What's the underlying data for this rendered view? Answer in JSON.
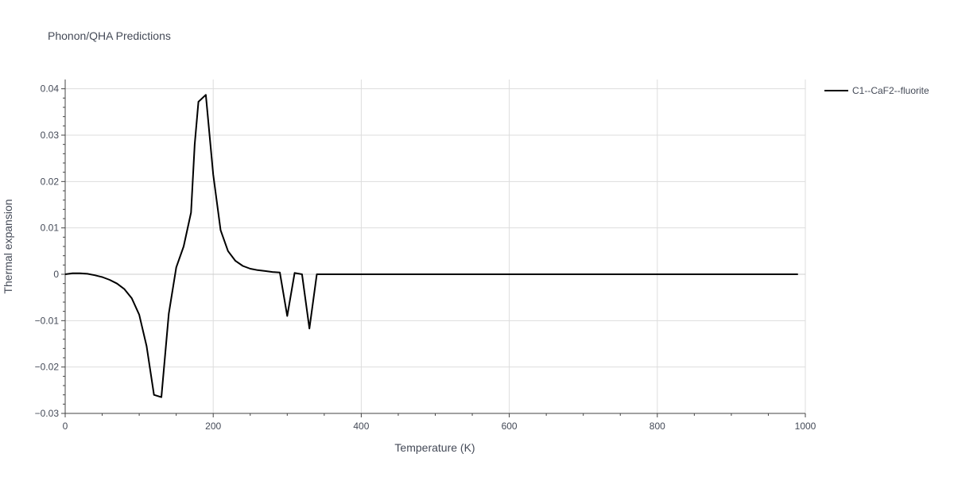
{
  "chart_data": {
    "type": "line",
    "title": "Phonon/QHA Predictions",
    "xlabel": "Temperature (K)",
    "ylabel": "Thermal expansion",
    "xlim": [
      0,
      1000
    ],
    "ylim": [
      -0.03,
      0.042
    ],
    "xticks": [
      0,
      200,
      400,
      600,
      800,
      1000
    ],
    "xtick_labels": [
      "0",
      "200",
      "400",
      "600",
      "800",
      "1000"
    ],
    "yticks": [
      -0.03,
      -0.02,
      -0.01,
      0,
      0.01,
      0.02,
      0.03,
      0.04
    ],
    "ytick_labels": [
      "−0.03",
      "−0.02",
      "−0.01",
      "0",
      "0.01",
      "0.02",
      "0.03",
      "0.04"
    ],
    "grid": true,
    "legend_position": "top-right-outside",
    "series": [
      {
        "name": "C1--CaF2--fluorite",
        "color": "#000000",
        "x": [
          0,
          10,
          20,
          30,
          40,
          50,
          60,
          70,
          80,
          90,
          100,
          110,
          120,
          130,
          140,
          150,
          160,
          170,
          175,
          180,
          190,
          200,
          210,
          220,
          230,
          240,
          250,
          260,
          270,
          280,
          290,
          300,
          310,
          320,
          330,
          340,
          350,
          400,
          500,
          600,
          700,
          800,
          900,
          990
        ],
        "y": [
          0,
          0.0002,
          0.0002,
          0.0001,
          -0.0002,
          -0.0006,
          -0.0012,
          -0.002,
          -0.0032,
          -0.0052,
          -0.0087,
          -0.0155,
          -0.026,
          -0.0265,
          -0.0085,
          0.0015,
          0.006,
          0.0133,
          0.028,
          0.0372,
          0.0387,
          0.0215,
          0.0095,
          0.005,
          0.0029,
          0.0018,
          0.0012,
          0.0009,
          0.0007,
          0.0005,
          0.0004,
          -0.009,
          0.0003,
          0,
          -0.0117,
          0,
          0,
          0,
          0,
          0,
          0,
          0,
          0,
          0
        ]
      }
    ]
  }
}
